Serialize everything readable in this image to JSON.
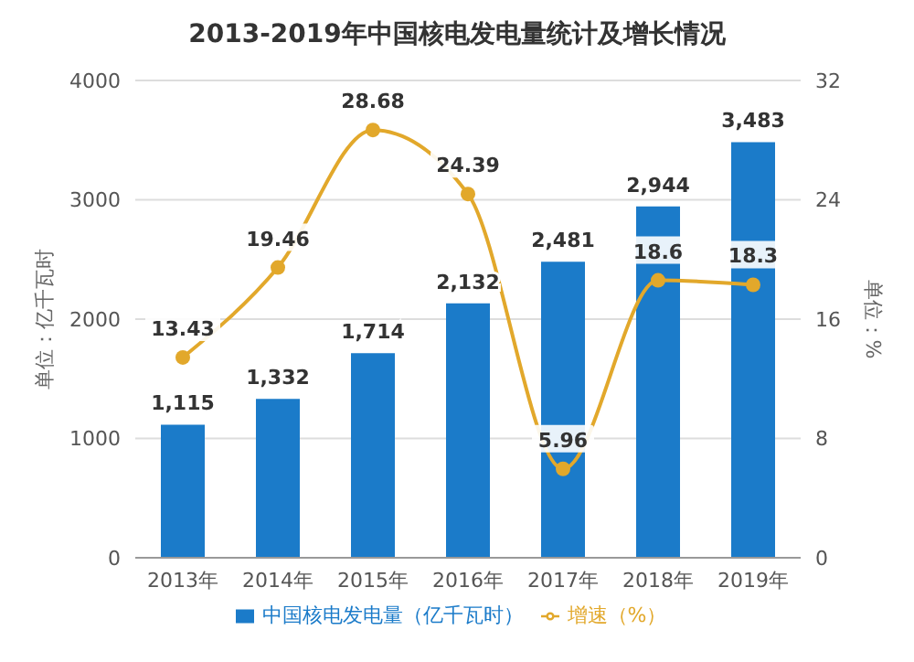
{
  "chart_data": {
    "type": "bar",
    "title": "2013-2019年中国核电发电量统计及增长情况",
    "ylabel": "单位：亿千瓦时",
    "y2label": "单位：%",
    "categories": [
      "2013年",
      "2014年",
      "2015年",
      "2016年",
      "2017年",
      "2018年",
      "2019年"
    ],
    "series": [
      {
        "name": "中国核电发电量（亿千瓦时）",
        "color": "#1b7bc9",
        "values": [
          1115,
          1332,
          1714,
          2132,
          2481,
          2944,
          3483
        ],
        "value_labels": [
          "1,115",
          "1,332",
          "1,714",
          "2,132",
          "2,481",
          "2,944",
          "3,483"
        ]
      },
      {
        "name": "增速（%）",
        "type": "line",
        "axis": "y2",
        "color": "#e2a82b",
        "values": [
          13.43,
          19.46,
          28.68,
          24.39,
          5.96,
          18.6,
          18.3
        ],
        "value_labels": [
          "13.43",
          "19.46",
          "28.68",
          "24.39",
          "5.96",
          "18.6",
          "18.3"
        ]
      }
    ],
    "ylim": [
      0,
      4000
    ],
    "yticks": [
      0,
      1000,
      2000,
      3000,
      4000
    ],
    "y2lim": [
      0,
      32
    ],
    "y2ticks": [
      0,
      8,
      16,
      24,
      32
    ],
    "grid": "y",
    "legend": "bottom",
    "marker": "circle"
  }
}
